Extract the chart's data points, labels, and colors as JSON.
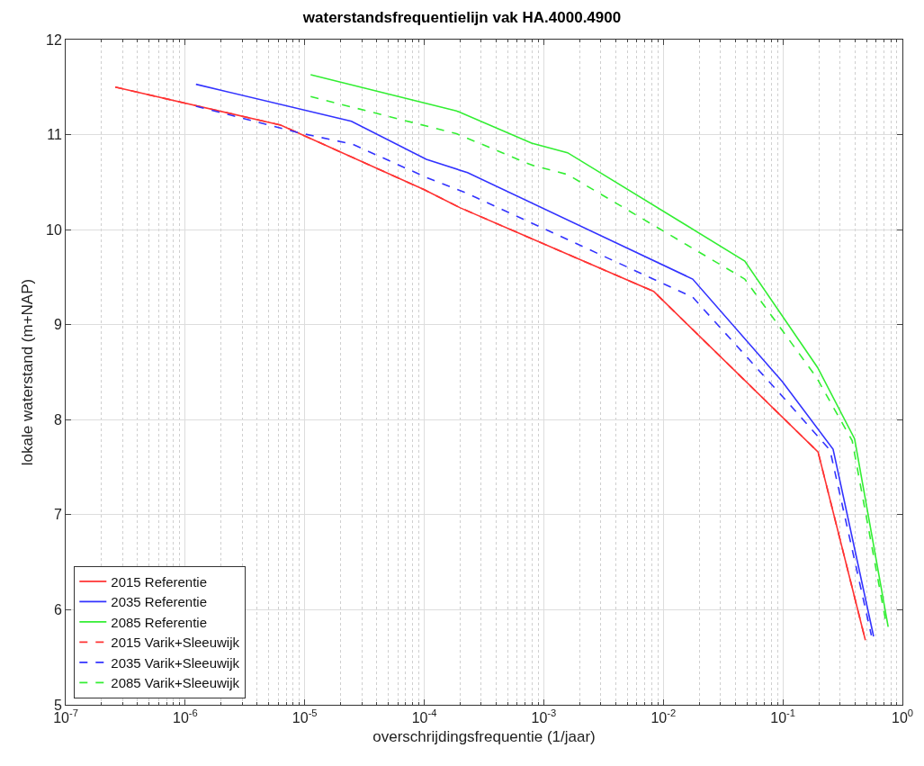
{
  "chart_data": {
    "type": "line",
    "title": "waterstandsfrequentielijn vak HA.4000.4900",
    "xlabel": "overschrijdingsfrequentie (1/jaar)",
    "ylabel": "lokale waterstand (m+NAP)",
    "log": "x",
    "grid": true,
    "legend": "bottom left",
    "marker": "none",
    "xlim": [
      1e-07,
      1
    ],
    "xticks": [
      {
        "value": 1e-07,
        "label": "10$^{-7}$"
      },
      {
        "value": 1e-06,
        "label": "10$^{-6}$"
      },
      {
        "value": 1e-05,
        "label": "10$^{-5}$"
      },
      {
        "value": 0.0001,
        "label": "10$^{-4}$"
      },
      {
        "value": 0.001,
        "label": "10$^{-3}$"
      },
      {
        "value": 0.01,
        "label": "10$^{-2}$"
      },
      {
        "value": 0.1,
        "label": "10$^{-1}$"
      },
      {
        "value": 1,
        "label": "10$^{0}$"
      }
    ],
    "ylim": [
      5,
      12
    ],
    "yticks": [
      5,
      6,
      7,
      8,
      9,
      10,
      11,
      12
    ],
    "series": [
      {
        "name": "2015 Referentie",
        "color": "#ff3333",
        "line_style": "solid",
        "x": [
          2.6e-07,
          6.3e-06,
          0.0001,
          0.0002,
          0.0083,
          0.197,
          0.49
        ],
        "values": [
          11.5,
          11.1,
          10.42,
          10.23,
          9.35,
          7.66,
          5.68
        ]
      },
      {
        "name": "2035 Referentie",
        "color": "#3333ff",
        "line_style": "solid",
        "x": [
          1.23e-06,
          2.46e-05,
          0.000104,
          0.00023,
          0.0176,
          0.099,
          0.263,
          0.574
        ],
        "values": [
          11.53,
          11.14,
          10.74,
          10.6,
          9.48,
          8.4,
          7.69,
          5.72
        ]
      },
      {
        "name": "2085 Referentie",
        "color": "#33ee33",
        "line_style": "solid",
        "x": [
          1.12e-05,
          0.000186,
          0.00079,
          0.00158,
          0.048,
          0.195,
          0.398,
          0.76
        ],
        "values": [
          11.63,
          11.25,
          10.91,
          10.81,
          9.67,
          8.55,
          7.8,
          5.82
        ]
      },
      {
        "name": "2015 Varik+Sleeuwijk",
        "color": "#ff3333",
        "line_style": "dashed",
        "x": [
          2.6e-07,
          6.3e-06,
          0.0001,
          0.0002,
          0.0083,
          0.197,
          0.49
        ],
        "values": [
          11.5,
          11.1,
          10.42,
          10.23,
          9.35,
          7.66,
          5.68
        ]
      },
      {
        "name": "2035 Varik+Sleeuwijk",
        "color": "#3333ff",
        "line_style": "dashed",
        "x": [
          1.23e-06,
          8.9e-06,
          2.5e-05,
          0.000104,
          0.00023,
          0.0176,
          0.1,
          0.248,
          0.55
        ],
        "values": [
          11.3,
          11.02,
          10.9,
          10.55,
          10.38,
          9.29,
          8.24,
          7.68,
          5.73
        ]
      },
      {
        "name": "2085 Varik+Sleeuwijk",
        "color": "#33ee33",
        "line_style": "dashed",
        "x": [
          1.12e-05,
          0.000186,
          0.00079,
          0.00158,
          0.048,
          0.19,
          0.38,
          0.74
        ],
        "values": [
          11.4,
          11.01,
          10.68,
          10.58,
          9.48,
          8.45,
          7.78,
          5.82
        ]
      }
    ]
  }
}
